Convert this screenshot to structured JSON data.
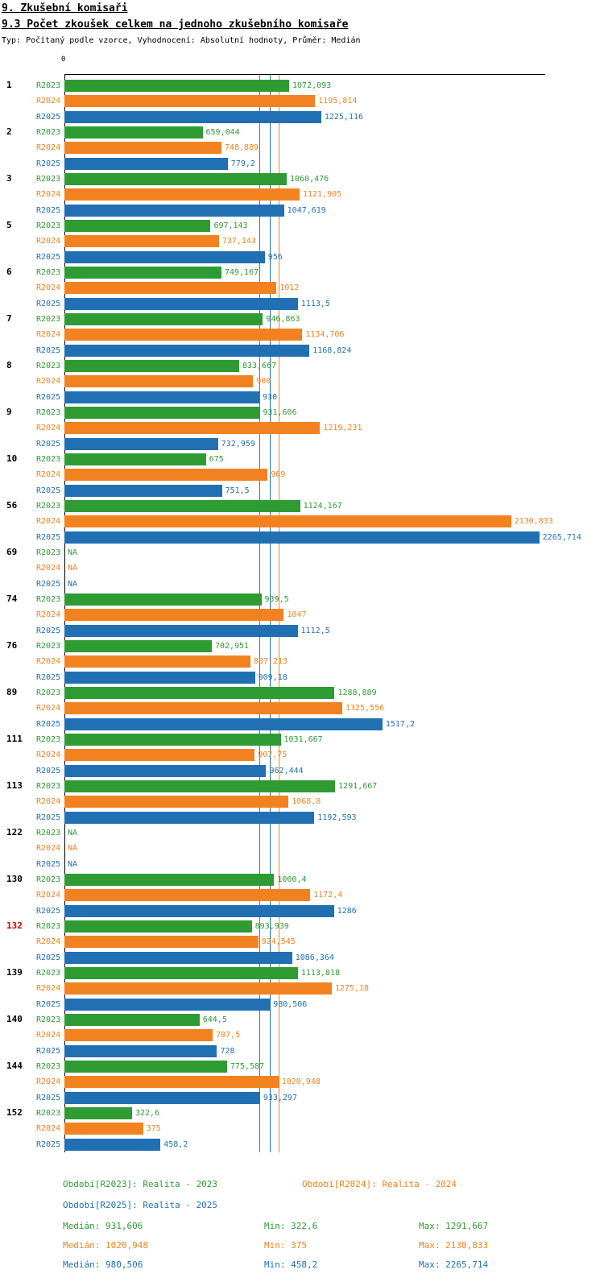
{
  "header": {
    "title": "9. Zkušební komisaři",
    "subtitle": "9.3 Počet zkoušek celkem na jednoho zkušebního komisaře",
    "meta": "Typ: Počítaný podle vzorce, Vyhodnocení: Absolutní hodnoty, Průměr: Medián"
  },
  "colors": {
    "r2023": "#2e9b33",
    "r2024": "#f28220",
    "r2025": "#2170b4",
    "highlight": "#cc0000",
    "axis": "#000000"
  },
  "chart_data": {
    "type": "bar",
    "orientation": "horizontal",
    "title": "9.3 Počet zkoušek celkem na jednoho zkušebního komisaře",
    "axis": {
      "zero_label": "0",
      "min": 0,
      "max": 2290
    },
    "grid": false,
    "legend_position": "bottom",
    "series": [
      {
        "name": "R2023",
        "color_key": "r2023"
      },
      {
        "name": "R2024",
        "color_key": "r2024"
      },
      {
        "name": "R2025",
        "color_key": "r2025"
      }
    ],
    "median_lines": [
      {
        "series": "R2023",
        "color_key": "r2023",
        "value": 931.606
      },
      {
        "series": "R2025",
        "color_key": "r2025",
        "value": 980.506
      },
      {
        "series": "R2024",
        "color_key": "r2024",
        "value": 1020.948
      }
    ],
    "groups": [
      {
        "category": "1",
        "highlight": false,
        "values": [
          1072.093,
          1195.814,
          1225.116
        ],
        "labels": [
          "1072,093",
          "1195,814",
          "1225,116"
        ]
      },
      {
        "category": "2",
        "highlight": false,
        "values": [
          659.044,
          748.889,
          779.2
        ],
        "labels": [
          "659,044",
          "748,889",
          "779,2"
        ]
      },
      {
        "category": "3",
        "highlight": false,
        "values": [
          1060.476,
          1121.905,
          1047.619
        ],
        "labels": [
          "1060,476",
          "1121,905",
          "1047,619"
        ]
      },
      {
        "category": "5",
        "highlight": false,
        "values": [
          697.143,
          737.143,
          956
        ],
        "labels": [
          "697,143",
          "737,143",
          "956"
        ]
      },
      {
        "category": "6",
        "highlight": false,
        "values": [
          749.167,
          1012,
          1113.5
        ],
        "labels": [
          "749,167",
          "1012",
          "1113,5"
        ]
      },
      {
        "category": "7",
        "highlight": false,
        "values": [
          946.863,
          1134.706,
          1168.824
        ],
        "labels": [
          "946,863",
          "1134,706",
          "1168,824"
        ]
      },
      {
        "category": "8",
        "highlight": false,
        "values": [
          833.667,
          900,
          930
        ],
        "labels": [
          "833,667",
          "900",
          "930"
        ]
      },
      {
        "category": "9",
        "highlight": false,
        "values": [
          931.606,
          1219.231,
          732.959
        ],
        "labels": [
          "931,606",
          "1219,231",
          "732,959"
        ]
      },
      {
        "category": "10",
        "highlight": false,
        "values": [
          675,
          969,
          751.5
        ],
        "labels": [
          "675",
          "969",
          "751,5"
        ]
      },
      {
        "category": "56",
        "highlight": false,
        "values": [
          1124.167,
          2130.833,
          2265.714
        ],
        "labels": [
          "1124,167",
          "2130,833",
          "2265,714"
        ]
      },
      {
        "category": "69",
        "highlight": false,
        "values": [
          null,
          null,
          null
        ],
        "labels": [
          "NA",
          "NA",
          "NA"
        ]
      },
      {
        "category": "74",
        "highlight": false,
        "values": [
          939.5,
          1047,
          1112.5
        ],
        "labels": [
          "939,5",
          "1047",
          "1112,5"
        ]
      },
      {
        "category": "76",
        "highlight": false,
        "values": [
          702.951,
          887.213,
          909.18
        ],
        "labels": [
          "702,951",
          "887,213",
          "909,18"
        ]
      },
      {
        "category": "89",
        "highlight": false,
        "values": [
          1288.889,
          1325.556,
          1517.2
        ],
        "labels": [
          "1288,889",
          "1325,556",
          "1517,2"
        ]
      },
      {
        "category": "111",
        "highlight": false,
        "values": [
          1031.667,
          907.75,
          962.444
        ],
        "labels": [
          "1031,667",
          "907,75",
          "962,444"
        ]
      },
      {
        "category": "113",
        "highlight": false,
        "values": [
          1291.667,
          1068.8,
          1192.593
        ],
        "labels": [
          "1291,667",
          "1068,8",
          "1192,593"
        ]
      },
      {
        "category": "122",
        "highlight": false,
        "values": [
          null,
          null,
          null
        ],
        "labels": [
          "NA",
          "NA",
          "NA"
        ]
      },
      {
        "category": "130",
        "highlight": false,
        "values": [
          1000.4,
          1172.4,
          1286
        ],
        "labels": [
          "1000,4",
          "1172,4",
          "1286"
        ]
      },
      {
        "category": "132",
        "highlight": true,
        "values": [
          893.939,
          924.545,
          1086.364
        ],
        "labels": [
          "893,939",
          "924,545",
          "1086,364"
        ]
      },
      {
        "category": "139",
        "highlight": false,
        "values": [
          1113.818,
          1275.18,
          980.506
        ],
        "labels": [
          "1113,818",
          "1275,18",
          "980,506"
        ]
      },
      {
        "category": "140",
        "highlight": false,
        "values": [
          644.5,
          707.5,
          728
        ],
        "labels": [
          "644,5",
          "707,5",
          "728"
        ]
      },
      {
        "category": "144",
        "highlight": false,
        "values": [
          775.587,
          1020.948,
          933.297
        ],
        "labels": [
          "775,587",
          "1020,948",
          "933,297"
        ]
      },
      {
        "category": "152",
        "highlight": false,
        "values": [
          322.6,
          375,
          458.2
        ],
        "labels": [
          "322,6",
          "375",
          "458,2"
        ]
      }
    ]
  },
  "legend": {
    "items": [
      {
        "text": "Období[R2023]: Realita - 2023",
        "color_key": "r2023"
      },
      {
        "text": "Období[R2024]: Realita - 2024",
        "color_key": "r2024"
      },
      {
        "text": "Období[R2025]: Realita - 2025",
        "color_key": "r2025"
      }
    ]
  },
  "stats": {
    "rows": [
      {
        "color_key": "r2023",
        "median": "Medián: 931,606",
        "min": "Min: 322,6",
        "max": "Max: 1291,667"
      },
      {
        "color_key": "r2024",
        "median": "Medián: 1020,948",
        "min": "Min: 375",
        "max": "Max: 2130,833"
      },
      {
        "color_key": "r2025",
        "median": "Medián: 980,506",
        "min": "Min: 458,2",
        "max": "Max: 2265,714"
      }
    ]
  }
}
